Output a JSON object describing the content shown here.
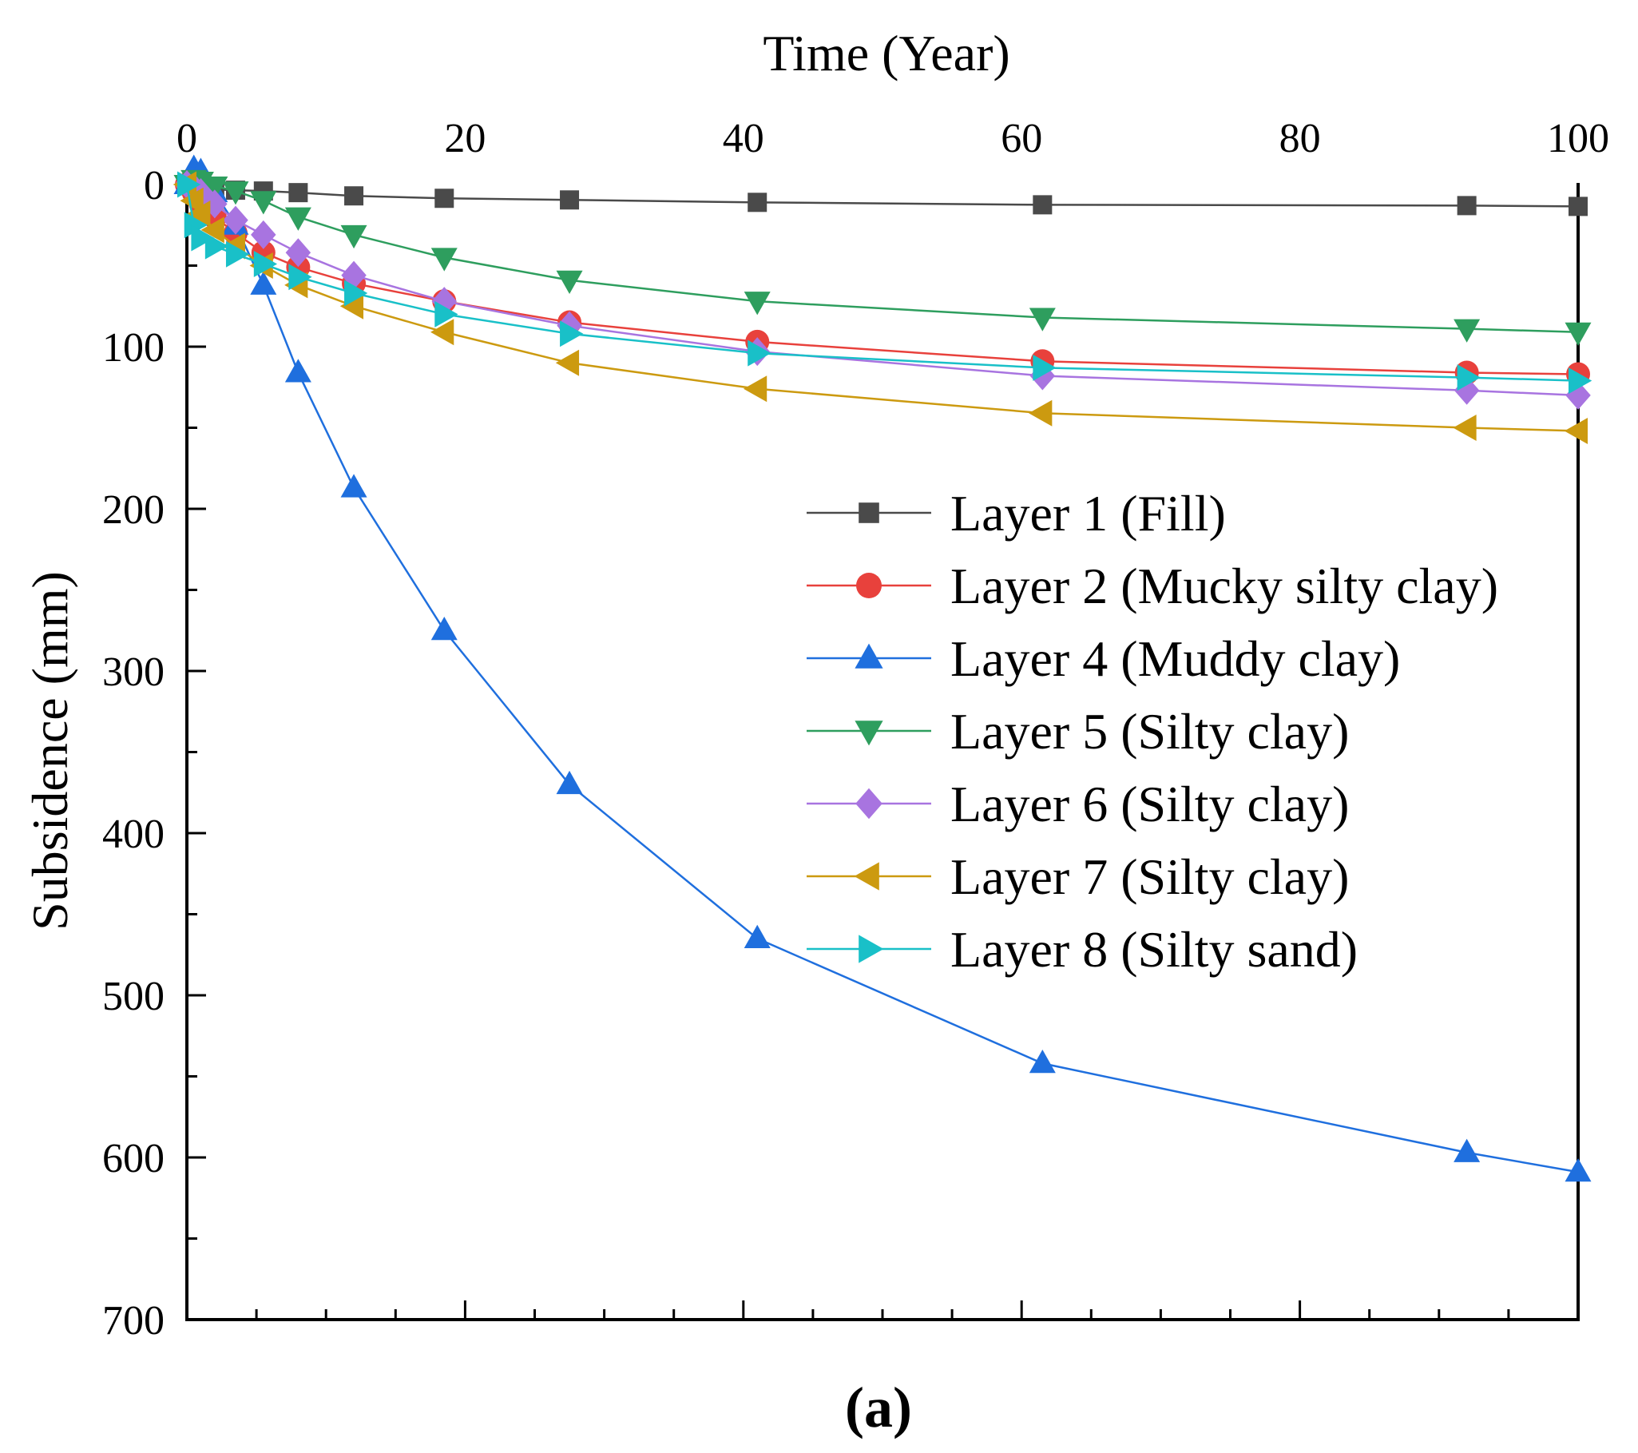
{
  "chart_data": {
    "type": "line",
    "title": "",
    "xlabel": "Time (Year)",
    "ylabel": "Subsidence (mm)",
    "caption": "(a)",
    "xlim": [
      0,
      100
    ],
    "ylim": [
      0,
      700
    ],
    "y_inverted": true,
    "x_axis_position": "top",
    "x_ticks": [
      0,
      20,
      40,
      60,
      80,
      100
    ],
    "x_tick_labels": [
      "0",
      "20",
      "40",
      "60",
      "80",
      "100"
    ],
    "y_ticks": [
      0,
      100,
      200,
      300,
      400,
      500,
      600,
      700
    ],
    "y_tick_labels": [
      "0",
      "100",
      "200",
      "300",
      "400",
      "500",
      "600",
      "700"
    ],
    "grid": false,
    "legend_position": "center-right",
    "series": [
      {
        "name": "Layer 1 (Fill)",
        "color": "#4a4a4a",
        "marker": "square",
        "x": [
          0,
          0.5,
          1,
          2,
          3.5,
          5.5,
          8,
          12,
          18.5,
          27.5,
          41,
          61.5,
          92,
          100
        ],
        "y": [
          0,
          1,
          2,
          3,
          3.5,
          4,
          5,
          7,
          8.5,
          9.5,
          11,
          12.5,
          13,
          13.5
        ]
      },
      {
        "name": "Layer 2 (Mucky silty clay)",
        "color": "#e8413c",
        "marker": "circle",
        "x": [
          0,
          0.5,
          1,
          2,
          3.5,
          5.5,
          8,
          12,
          18.5,
          27.5,
          41,
          61.5,
          92,
          100
        ],
        "y": [
          0,
          5,
          12,
          20,
          30,
          42,
          51,
          61,
          72,
          85,
          97,
          109,
          116,
          117
        ]
      },
      {
        "name": "Layer 4 (Muddy clay)",
        "color": "#1f6fde",
        "marker": "triangle-up",
        "x": [
          0,
          0.5,
          1,
          2,
          3.5,
          5.5,
          8,
          12,
          18.5,
          27.5,
          41,
          61.5,
          92,
          100
        ],
        "y": [
          0,
          -10,
          -8,
          5,
          25,
          62,
          116,
          187,
          275,
          370,
          465,
          542,
          597,
          609
        ]
      },
      {
        "name": "Layer 5 (Silty clay)",
        "color": "#2e9e5e",
        "marker": "triangle-down",
        "x": [
          0,
          0.5,
          1,
          2,
          3.5,
          5.5,
          8,
          12,
          18.5,
          27.5,
          41,
          61.5,
          92,
          100
        ],
        "y": [
          0,
          -3,
          -2,
          1,
          4,
          10,
          20,
          31,
          45,
          59,
          72,
          82,
          89,
          91
        ]
      },
      {
        "name": "Layer 6 (Silty clay)",
        "color": "#a874e0",
        "marker": "diamond",
        "x": [
          0,
          0.5,
          1,
          2,
          3.5,
          5.5,
          8,
          12,
          18.5,
          27.5,
          41,
          61.5,
          92,
          100
        ],
        "y": [
          0,
          2,
          5,
          12,
          22,
          31,
          42,
          56,
          72,
          87,
          103,
          118,
          127,
          130
        ]
      },
      {
        "name": "Layer 7 (Silty clay)",
        "color": "#cc9a10",
        "marker": "triangle-left",
        "x": [
          0,
          0.5,
          1,
          2,
          3.5,
          5.5,
          8,
          12,
          18.5,
          27.5,
          41,
          61.5,
          92,
          100
        ],
        "y": [
          0,
          10,
          18,
          28,
          38,
          50,
          62,
          75,
          91,
          110,
          126,
          141,
          150,
          152
        ]
      },
      {
        "name": "Layer 8 (Silty sand)",
        "color": "#19c0c8",
        "marker": "triangle-right",
        "x": [
          0,
          0.5,
          1,
          2,
          3.5,
          5.5,
          8,
          12,
          18.5,
          27.5,
          41,
          61.5,
          92,
          100
        ],
        "y": [
          0,
          25,
          33,
          38,
          43,
          49,
          57,
          67,
          80,
          92,
          104,
          113,
          119,
          121
        ]
      }
    ]
  }
}
